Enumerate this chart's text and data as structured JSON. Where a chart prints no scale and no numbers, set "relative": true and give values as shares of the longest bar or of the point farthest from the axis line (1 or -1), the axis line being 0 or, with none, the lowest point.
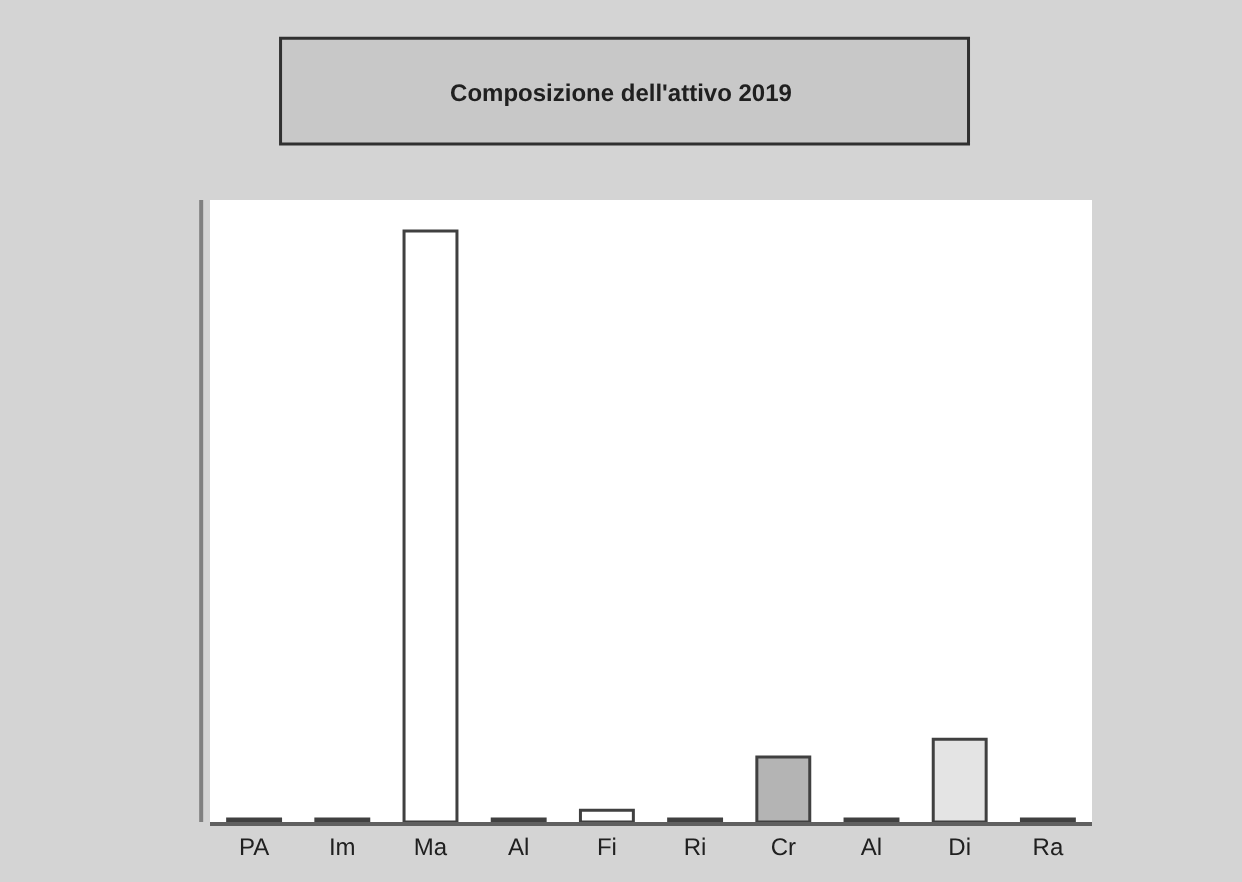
{
  "chart_data": {
    "type": "bar",
    "title": "Composizione dell'attivo 2019",
    "relative": true,
    "categories": [
      "PA",
      "Im",
      "Ma",
      "Al",
      "Fi",
      "Ri",
      "Cr",
      "Al",
      "Di",
      "Ra"
    ],
    "values": [
      0.005,
      0.005,
      1,
      0.005,
      0.02,
      0.005,
      0.11,
      0.005,
      0.14,
      0.005
    ],
    "colors": [
      "#6e6e6e",
      "#6e6e6e",
      "#ffffff",
      "#6e6e6e",
      "#ffffff",
      "#6e6e6e",
      "#b4b4b4",
      "#6e6e6e",
      "#e4e4e4",
      "#6e6e6e"
    ]
  }
}
